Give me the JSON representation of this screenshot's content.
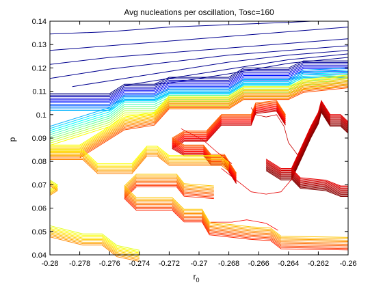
{
  "chart_data": {
    "type": "contour",
    "title": "Avg nucleations per oscillation, Tosc=160",
    "xlabel_main": "r",
    "xlabel_sub": "0",
    "ylabel": "p",
    "xlim": [
      -0.28,
      -0.26
    ],
    "ylim": [
      0.04,
      0.14
    ],
    "x_ticks": [
      -0.28,
      -0.278,
      -0.276,
      -0.274,
      -0.272,
      -0.27,
      -0.268,
      -0.266,
      -0.264,
      -0.262,
      -0.26
    ],
    "x_tick_labels": [
      "-0.28",
      "-0.278",
      "-0.276",
      "-0.274",
      "-0.272",
      "-0.27",
      "-0.268",
      "-0.266",
      "-0.264",
      "-0.262",
      "-0.26"
    ],
    "y_ticks": [
      0.04,
      0.05,
      0.06,
      0.07,
      0.08,
      0.09,
      0.1,
      0.11,
      0.12,
      0.13,
      0.14
    ],
    "y_tick_labels": [
      "0.04",
      "0.05",
      "0.06",
      "0.07",
      "0.08",
      "0.09",
      "0.1",
      "0.11",
      "0.12",
      "0.13",
      "0.14"
    ],
    "colormap": "jet",
    "grid": false,
    "legend": "none",
    "bands": [
      {
        "name": "blue-band",
        "count": 12,
        "color_start": 0.0,
        "color_end": 0.3,
        "offset_step": 0.00065,
        "points": [
          [
            -0.28,
            0.109
          ],
          [
            -0.276,
            0.109
          ],
          [
            -0.275,
            0.113
          ],
          [
            -0.273,
            0.113
          ],
          [
            -0.272,
            0.116
          ],
          [
            -0.268,
            0.116
          ],
          [
            -0.267,
            0.12
          ],
          [
            -0.264,
            0.12
          ],
          [
            -0.263,
            0.123
          ],
          [
            -0.26,
            0.123
          ]
        ]
      },
      {
        "name": "cyan-yellow-band",
        "count": 10,
        "color_start": 0.3,
        "color_end": 0.62,
        "offset_step": 0.0009,
        "points": [
          [
            -0.28,
            0.095
          ],
          [
            -0.276,
            0.103
          ],
          [
            -0.275,
            0.108
          ],
          [
            -0.273,
            0.108
          ],
          [
            -0.272,
            0.111
          ],
          [
            -0.268,
            0.111
          ],
          [
            -0.267,
            0.115
          ],
          [
            -0.264,
            0.115
          ],
          [
            -0.263,
            0.119
          ],
          [
            -0.26,
            0.12
          ]
        ]
      },
      {
        "name": "yellow-orange-upper-band",
        "count": 11,
        "color_start": 0.62,
        "color_end": 0.8,
        "offset_step": 0.00055,
        "points": [
          [
            -0.28,
            0.087
          ],
          [
            -0.278,
            0.087
          ],
          [
            -0.276,
            0.095
          ],
          [
            -0.275,
            0.099
          ],
          [
            -0.273,
            0.101
          ],
          [
            -0.272,
            0.108
          ],
          [
            -0.268,
            0.108
          ],
          [
            -0.267,
            0.112
          ],
          [
            -0.264,
            0.112
          ],
          [
            -0.263,
            0.115
          ],
          [
            -0.26,
            0.117
          ]
        ]
      },
      {
        "name": "orange-red-band",
        "count": 11,
        "color_start": 0.78,
        "color_end": 0.93,
        "offset_step": 0.00045,
        "points": [
          [
            -0.2718,
            0.09
          ],
          [
            -0.271,
            0.093
          ],
          [
            -0.2695,
            0.093
          ],
          [
            -0.2685,
            0.1
          ],
          [
            -0.2665,
            0.1
          ],
          [
            -0.2662,
            0.105
          ],
          [
            -0.2648,
            0.106
          ],
          [
            -0.2642,
            0.1
          ]
        ]
      },
      {
        "name": "orange-red-lower-arm",
        "count": 11,
        "color_start": 0.78,
        "color_end": 0.93,
        "offset_step": 0.00045,
        "points": [
          [
            -0.2718,
            0.09
          ],
          [
            -0.271,
            0.087
          ],
          [
            -0.2697,
            0.087
          ],
          [
            -0.2692,
            0.083
          ],
          [
            -0.2683,
            0.083
          ],
          [
            -0.2675,
            0.075
          ]
        ]
      },
      {
        "name": "yellow-left-band",
        "count": 8,
        "color_start": 0.62,
        "color_end": 0.75,
        "offset_step": 0.0006,
        "points": [
          [
            -0.28,
            0.085
          ],
          [
            -0.2778,
            0.085
          ],
          [
            -0.2768,
            0.079
          ],
          [
            -0.2745,
            0.079
          ],
          [
            -0.2735,
            0.0865
          ],
          [
            -0.2728,
            0.0865
          ],
          [
            -0.272,
            0.0825
          ],
          [
            -0.2685,
            0.0825
          ],
          [
            -0.268,
            0.08
          ]
        ]
      },
      {
        "name": "orange-middle-band",
        "count": 10,
        "color_start": 0.68,
        "color_end": 0.84,
        "offset_step": 0.0006,
        "points": [
          [
            -0.275,
            0.0695
          ],
          [
            -0.2742,
            0.0745
          ],
          [
            -0.2715,
            0.0745
          ],
          [
            -0.271,
            0.0705
          ],
          [
            -0.269,
            0.0695
          ]
        ]
      },
      {
        "name": "orange-middle-lower-arm",
        "count": 10,
        "color_start": 0.68,
        "color_end": 0.84,
        "offset_step": 0.0006,
        "points": [
          [
            -0.275,
            0.0695
          ],
          [
            -0.2742,
            0.0645
          ],
          [
            -0.2718,
            0.0645
          ],
          [
            -0.271,
            0.0595
          ],
          [
            -0.2698,
            0.0595
          ],
          [
            -0.2693,
            0.054
          ],
          [
            -0.2665,
            0.052
          ],
          [
            -0.2652,
            0.0515
          ],
          [
            -0.2645,
            0.048
          ],
          [
            -0.26,
            0.0475
          ]
        ]
      },
      {
        "name": "yellow-bottom-left-band",
        "count": 9,
        "color_start": 0.6,
        "color_end": 0.74,
        "offset_step": 0.0006,
        "points": [
          [
            -0.28,
            0.0525
          ],
          [
            -0.2778,
            0.049
          ],
          [
            -0.2765,
            0.049
          ],
          [
            -0.2755,
            0.044
          ],
          [
            -0.274,
            0.042
          ]
        ]
      },
      {
        "name": "yellow-left-stub",
        "count": 6,
        "color_start": 0.6,
        "color_end": 0.72,
        "offset_step": 0.0005,
        "points": [
          [
            -0.28,
            0.068
          ],
          [
            -0.2795,
            0.07
          ],
          [
            -0.28,
            0.072
          ]
        ]
      },
      {
        "name": "darkred-upper-band",
        "count": 12,
        "color_start": 0.9,
        "color_end": 1.0,
        "offset_step": 0.00045,
        "points": [
          [
            -0.2655,
            0.081
          ],
          [
            -0.2645,
            0.077
          ],
          [
            -0.2638,
            0.077
          ],
          [
            -0.263,
            0.088
          ],
          [
            -0.2625,
            0.095
          ],
          [
            -0.262,
            0.101
          ],
          [
            -0.2618,
            0.106
          ],
          [
            -0.2612,
            0.1
          ],
          [
            -0.2605,
            0.1
          ],
          [
            -0.26,
            0.097
          ]
        ]
      },
      {
        "name": "darkred-lower-band",
        "count": 11,
        "color_start": 0.9,
        "color_end": 1.0,
        "offset_step": 0.00045,
        "points": [
          [
            -0.2638,
            0.077
          ],
          [
            -0.2632,
            0.073
          ],
          [
            -0.2615,
            0.072
          ],
          [
            -0.2605,
            0.0695
          ],
          [
            -0.26,
            0.0695
          ]
        ]
      }
    ],
    "thin_lines": [
      {
        "name": "thin-red-line-upper",
        "color_value": 0.93,
        "points": [
          [
            -0.2665,
            0.103
          ],
          [
            -0.2662,
            0.1
          ],
          [
            -0.2655,
            0.099
          ],
          [
            -0.2648,
            0.1
          ],
          [
            -0.2643,
            0.095
          ],
          [
            -0.264,
            0.088
          ],
          [
            -0.2633,
            0.082
          ]
        ]
      },
      {
        "name": "thin-red-line-lower",
        "color_value": 0.9,
        "points": [
          [
            -0.2685,
            0.077
          ],
          [
            -0.2675,
            0.072
          ],
          [
            -0.2665,
            0.067
          ],
          [
            -0.2655,
            0.066
          ],
          [
            -0.2645,
            0.067
          ],
          [
            -0.2637,
            0.073
          ]
        ]
      },
      {
        "name": "thin-red-line-diagonal",
        "color_value": 0.9,
        "points": [
          [
            -0.2712,
            0.094
          ],
          [
            -0.2697,
            0.089
          ],
          [
            -0.2688,
            0.084
          ],
          [
            -0.2678,
            0.079
          ]
        ]
      },
      {
        "name": "thin-red-line-bottom",
        "color_value": 0.88,
        "points": [
          [
            -0.2692,
            0.054
          ],
          [
            -0.2678,
            0.054
          ],
          [
            -0.2668,
            0.055
          ],
          [
            -0.2655,
            0.0535
          ],
          [
            -0.2647,
            0.0505
          ]
        ]
      }
    ],
    "top_contours": [
      {
        "name": "top-contour-1",
        "points": [
          [
            -0.28,
            0.1345
          ],
          [
            -0.276,
            0.1355
          ],
          [
            -0.272,
            0.1375
          ],
          [
            -0.268,
            0.1385
          ],
          [
            -0.264,
            0.1395
          ],
          [
            -0.2625,
            0.14
          ]
        ]
      },
      {
        "name": "top-contour-2",
        "points": [
          [
            -0.28,
            0.1275
          ],
          [
            -0.276,
            0.1295
          ],
          [
            -0.272,
            0.1315
          ],
          [
            -0.268,
            0.1335
          ],
          [
            -0.264,
            0.1355
          ],
          [
            -0.26,
            0.1375
          ]
        ]
      },
      {
        "name": "top-contour-3",
        "points": [
          [
            -0.28,
            0.1215
          ],
          [
            -0.276,
            0.1245
          ],
          [
            -0.272,
            0.1265
          ],
          [
            -0.268,
            0.1285
          ],
          [
            -0.264,
            0.1305
          ],
          [
            -0.26,
            0.1325
          ]
        ]
      },
      {
        "name": "top-contour-4",
        "points": [
          [
            -0.28,
            0.1155
          ],
          [
            -0.276,
            0.1195
          ],
          [
            -0.272,
            0.1225
          ],
          [
            -0.268,
            0.1255
          ],
          [
            -0.264,
            0.1275
          ],
          [
            -0.26,
            0.1295
          ]
        ]
      },
      {
        "name": "top-contour-5",
        "points": [
          [
            -0.2785,
            0.112
          ],
          [
            -0.276,
            0.1145
          ],
          [
            -0.272,
            0.1185
          ],
          [
            -0.268,
            0.1225
          ],
          [
            -0.264,
            0.1255
          ],
          [
            -0.26,
            0.1275
          ]
        ]
      },
      {
        "name": "top-contour-6",
        "points": [
          [
            -0.275,
            0.1125
          ],
          [
            -0.272,
            0.1155
          ],
          [
            -0.268,
            0.1195
          ],
          [
            -0.264,
            0.1235
          ],
          [
            -0.26,
            0.126
          ]
        ]
      },
      {
        "name": "top-contour-7",
        "points": [
          [
            -0.273,
            0.113
          ],
          [
            -0.272,
            0.1135
          ],
          [
            -0.268,
            0.1175
          ],
          [
            -0.264,
            0.122
          ],
          [
            -0.26,
            0.1245
          ]
        ]
      }
    ]
  }
}
